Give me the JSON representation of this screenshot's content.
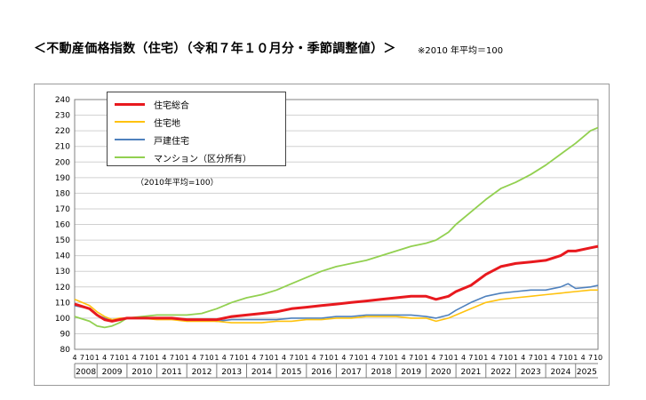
{
  "header": {
    "title": "＜不動産価格指数（住宅）（令和７年１０月分・季節調整値）＞",
    "note": "※2010 年平均＝100"
  },
  "chart_data": {
    "type": "line",
    "base_note": "（2010年平均=100）",
    "ylim": [
      80,
      240
    ],
    "yticks": [
      80,
      90,
      100,
      110,
      120,
      130,
      140,
      150,
      160,
      170,
      180,
      190,
      200,
      210,
      220,
      230,
      240
    ],
    "grid": "horizontal",
    "legend_position": "top-left",
    "x_range": [
      "2008-04",
      "2025-10"
    ],
    "month_tick_labels": [
      "4",
      "7",
      "10",
      "1"
    ],
    "years": [
      "2008",
      "2009",
      "2010",
      "2011",
      "2012",
      "2013",
      "2014",
      "2015",
      "2016",
      "2017",
      "2018",
      "2019",
      "2020",
      "2021",
      "2022",
      "2023",
      "2024",
      "2025"
    ],
    "series": [
      {
        "name": "住宅総合",
        "color": "#e8191e",
        "points": [
          [
            "2008-04",
            109
          ],
          [
            "2008-10",
            106
          ],
          [
            "2009-01",
            102
          ],
          [
            "2009-04",
            99
          ],
          [
            "2009-07",
            98
          ],
          [
            "2009-10",
            99
          ],
          [
            "2010-01",
            100
          ],
          [
            "2010-07",
            100
          ],
          [
            "2011-01",
            100
          ],
          [
            "2011-07",
            100
          ],
          [
            "2012-01",
            99
          ],
          [
            "2012-07",
            99
          ],
          [
            "2013-01",
            99
          ],
          [
            "2013-07",
            101
          ],
          [
            "2014-01",
            102
          ],
          [
            "2014-07",
            103
          ],
          [
            "2015-01",
            104
          ],
          [
            "2015-07",
            106
          ],
          [
            "2016-01",
            107
          ],
          [
            "2016-07",
            108
          ],
          [
            "2017-01",
            109
          ],
          [
            "2017-07",
            110
          ],
          [
            "2018-01",
            111
          ],
          [
            "2018-07",
            112
          ],
          [
            "2019-01",
            113
          ],
          [
            "2019-07",
            114
          ],
          [
            "2020-01",
            114
          ],
          [
            "2020-05",
            112
          ],
          [
            "2020-10",
            114
          ],
          [
            "2021-01",
            117
          ],
          [
            "2021-07",
            121
          ],
          [
            "2022-01",
            128
          ],
          [
            "2022-07",
            133
          ],
          [
            "2023-01",
            135
          ],
          [
            "2023-07",
            136
          ],
          [
            "2024-01",
            137
          ],
          [
            "2024-07",
            140
          ],
          [
            "2024-10",
            143
          ],
          [
            "2025-01",
            143
          ],
          [
            "2025-07",
            145
          ],
          [
            "2025-10",
            146
          ]
        ]
      },
      {
        "name": "住宅地",
        "color": "#ffc20e",
        "points": [
          [
            "2008-04",
            112
          ],
          [
            "2008-10",
            108
          ],
          [
            "2009-01",
            104
          ],
          [
            "2009-04",
            101
          ],
          [
            "2009-07",
            99
          ],
          [
            "2009-10",
            100
          ],
          [
            "2010-01",
            100
          ],
          [
            "2010-07",
            100
          ],
          [
            "2011-01",
            99
          ],
          [
            "2011-07",
            99
          ],
          [
            "2012-01",
            98
          ],
          [
            "2012-07",
            98
          ],
          [
            "2013-01",
            98
          ],
          [
            "2013-07",
            97
          ],
          [
            "2014-01",
            97
          ],
          [
            "2014-07",
            97
          ],
          [
            "2015-01",
            98
          ],
          [
            "2015-07",
            98
          ],
          [
            "2016-01",
            99
          ],
          [
            "2016-07",
            99
          ],
          [
            "2017-01",
            100
          ],
          [
            "2017-07",
            100
          ],
          [
            "2018-01",
            101
          ],
          [
            "2018-07",
            101
          ],
          [
            "2019-01",
            101
          ],
          [
            "2019-07",
            100
          ],
          [
            "2020-01",
            100
          ],
          [
            "2020-05",
            98
          ],
          [
            "2020-10",
            100
          ],
          [
            "2021-01",
            102
          ],
          [
            "2021-07",
            106
          ],
          [
            "2022-01",
            110
          ],
          [
            "2022-07",
            112
          ],
          [
            "2023-01",
            113
          ],
          [
            "2023-07",
            114
          ],
          [
            "2024-01",
            115
          ],
          [
            "2024-07",
            116
          ],
          [
            "2025-01",
            117
          ],
          [
            "2025-07",
            118
          ],
          [
            "2025-10",
            118
          ]
        ]
      },
      {
        "name": "戸建住宅",
        "color": "#4f81bd",
        "points": [
          [
            "2008-04",
            108
          ],
          [
            "2008-10",
            106
          ],
          [
            "2009-01",
            102
          ],
          [
            "2009-04",
            100
          ],
          [
            "2009-07",
            98
          ],
          [
            "2009-10",
            99
          ],
          [
            "2010-01",
            100
          ],
          [
            "2010-07",
            100
          ],
          [
            "2011-01",
            100
          ],
          [
            "2011-07",
            100
          ],
          [
            "2012-01",
            99
          ],
          [
            "2012-07",
            99
          ],
          [
            "2013-01",
            98
          ],
          [
            "2013-07",
            99
          ],
          [
            "2014-01",
            99
          ],
          [
            "2014-07",
            99
          ],
          [
            "2015-01",
            99
          ],
          [
            "2015-07",
            100
          ],
          [
            "2016-01",
            100
          ],
          [
            "2016-07",
            100
          ],
          [
            "2017-01",
            101
          ],
          [
            "2017-07",
            101
          ],
          [
            "2018-01",
            102
          ],
          [
            "2018-07",
            102
          ],
          [
            "2019-01",
            102
          ],
          [
            "2019-07",
            102
          ],
          [
            "2020-01",
            101
          ],
          [
            "2020-05",
            100
          ],
          [
            "2020-10",
            102
          ],
          [
            "2021-01",
            105
          ],
          [
            "2021-07",
            110
          ],
          [
            "2022-01",
            114
          ],
          [
            "2022-07",
            116
          ],
          [
            "2023-01",
            117
          ],
          [
            "2023-07",
            118
          ],
          [
            "2024-01",
            118
          ],
          [
            "2024-07",
            120
          ],
          [
            "2024-10",
            122
          ],
          [
            "2025-01",
            119
          ],
          [
            "2025-07",
            120
          ],
          [
            "2025-10",
            121
          ]
        ]
      },
      {
        "name": "マンション（区分所有）",
        "color": "#92d050",
        "points": [
          [
            "2008-04",
            101
          ],
          [
            "2008-10",
            98
          ],
          [
            "2009-01",
            95
          ],
          [
            "2009-04",
            94
          ],
          [
            "2009-07",
            95
          ],
          [
            "2009-10",
            97
          ],
          [
            "2010-01",
            100
          ],
          [
            "2010-07",
            101
          ],
          [
            "2011-01",
            102
          ],
          [
            "2011-07",
            102
          ],
          [
            "2012-01",
            102
          ],
          [
            "2012-07",
            103
          ],
          [
            "2013-01",
            106
          ],
          [
            "2013-07",
            110
          ],
          [
            "2014-01",
            113
          ],
          [
            "2014-07",
            115
          ],
          [
            "2015-01",
            118
          ],
          [
            "2015-07",
            122
          ],
          [
            "2016-01",
            126
          ],
          [
            "2016-07",
            130
          ],
          [
            "2017-01",
            133
          ],
          [
            "2017-07",
            135
          ],
          [
            "2018-01",
            137
          ],
          [
            "2018-07",
            140
          ],
          [
            "2019-01",
            143
          ],
          [
            "2019-07",
            146
          ],
          [
            "2020-01",
            148
          ],
          [
            "2020-05",
            150
          ],
          [
            "2020-10",
            155
          ],
          [
            "2021-01",
            160
          ],
          [
            "2021-07",
            168
          ],
          [
            "2022-01",
            176
          ],
          [
            "2022-07",
            183
          ],
          [
            "2023-01",
            187
          ],
          [
            "2023-07",
            192
          ],
          [
            "2024-01",
            198
          ],
          [
            "2024-07",
            205
          ],
          [
            "2025-01",
            212
          ],
          [
            "2025-07",
            220
          ],
          [
            "2025-10",
            222
          ]
        ]
      }
    ]
  }
}
